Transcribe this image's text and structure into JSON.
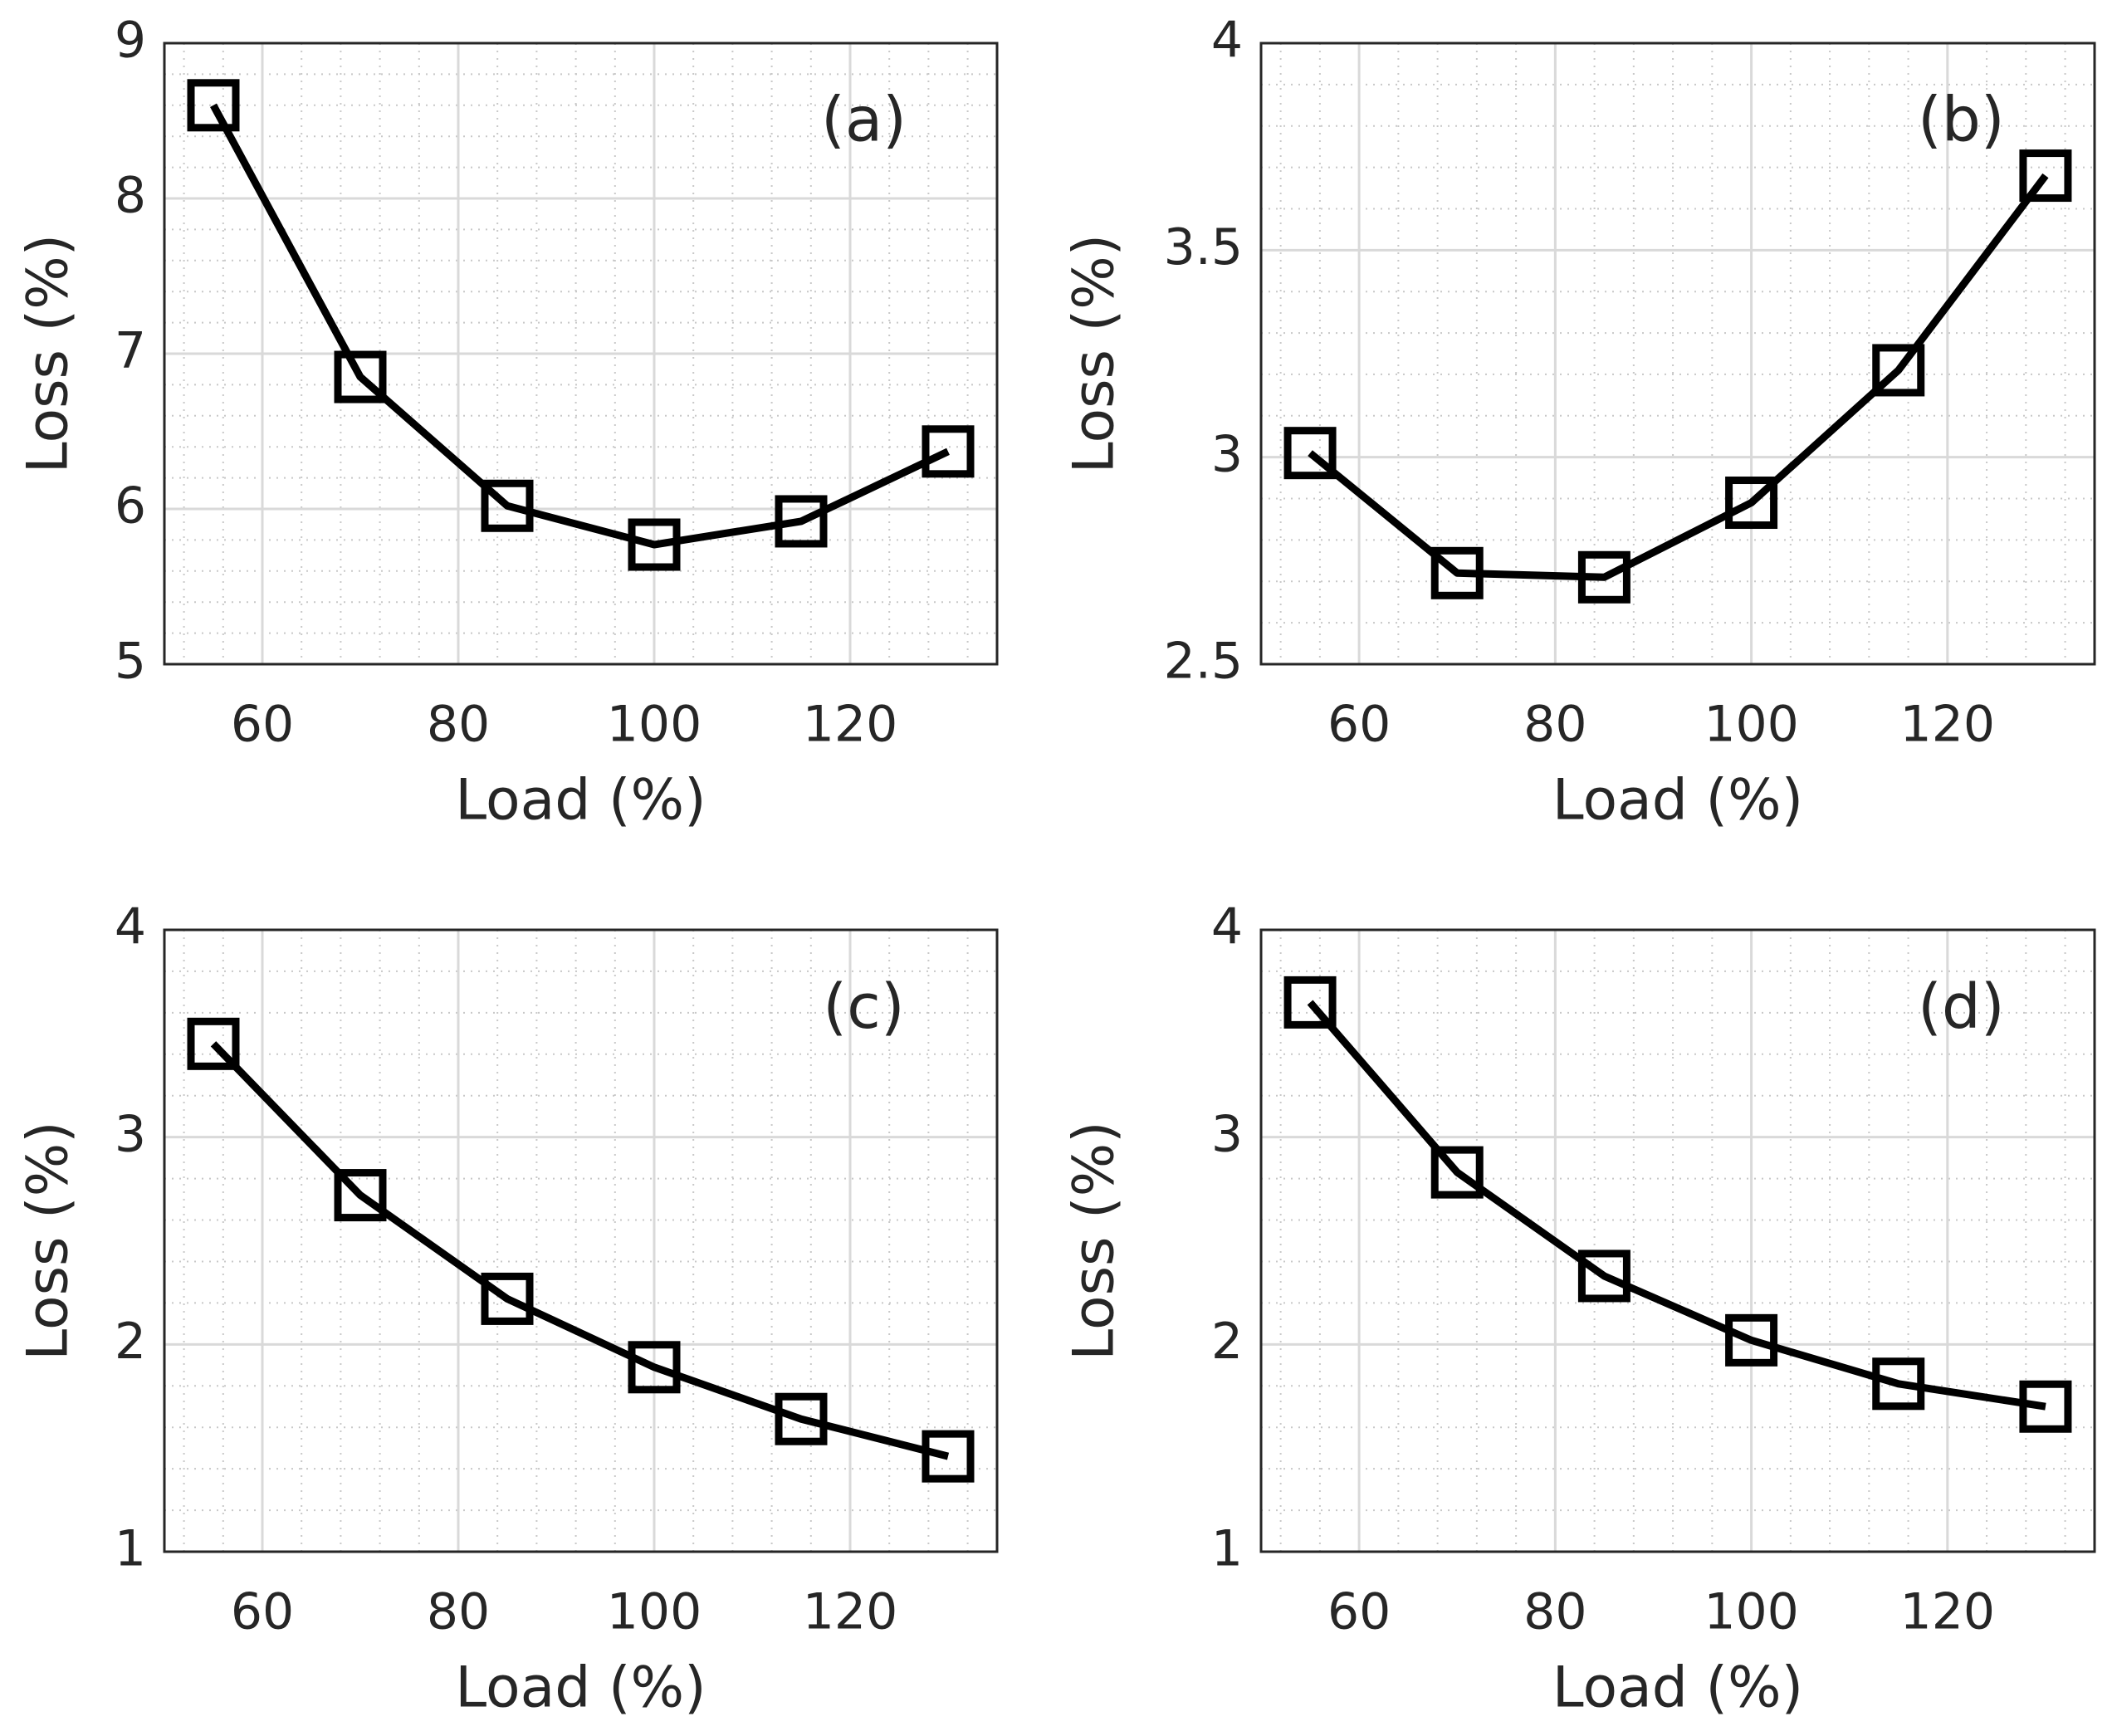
{
  "chart_data": [
    {
      "type": "line",
      "annotation": "(a)",
      "xlabel": "Load (%)",
      "ylabel": "Loss (%)",
      "x": [
        55,
        70,
        85,
        100,
        115,
        130
      ],
      "series": [
        {
          "color": "#000000",
          "values": [
            8.6,
            6.85,
            6.02,
            5.77,
            5.92,
            6.37
          ]
        }
      ],
      "xlim": [
        50,
        135
      ],
      "xticks": [
        60,
        80,
        100,
        120
      ],
      "ylim": [
        5,
        9
      ],
      "yticks": [
        5,
        6,
        7,
        8,
        9
      ],
      "grid": true,
      "minor_grid": true
    },
    {
      "type": "line",
      "annotation": "(b)",
      "xlabel": "Load (%)",
      "ylabel": "Loss (%)",
      "x": [
        55,
        70,
        85,
        100,
        115,
        130
      ],
      "series": [
        {
          "color": "#000000",
          "values": [
            3.01,
            2.72,
            2.71,
            2.89,
            3.21,
            3.68
          ]
        }
      ],
      "xlim": [
        50,
        135
      ],
      "xticks": [
        60,
        80,
        100,
        120
      ],
      "ylim": [
        2.5,
        4
      ],
      "yticks": [
        2.5,
        3,
        3.5,
        4
      ],
      "grid": true,
      "minor_grid": true
    },
    {
      "type": "line",
      "annotation": "(c)",
      "xlabel": "Load (%)",
      "ylabel": "Loss (%)",
      "x": [
        55,
        70,
        85,
        100,
        115,
        130
      ],
      "series": [
        {
          "color": "#000000",
          "values": [
            3.45,
            2.72,
            2.22,
            1.89,
            1.64,
            1.46
          ]
        }
      ],
      "xlim": [
        50,
        135
      ],
      "xticks": [
        60,
        80,
        100,
        120
      ],
      "ylim": [
        1,
        4
      ],
      "yticks": [
        1,
        2,
        3,
        4
      ],
      "grid": true,
      "minor_grid": true
    },
    {
      "type": "line",
      "annotation": "(d)",
      "xlabel": "Load (%)",
      "ylabel": "Loss (%)",
      "x": [
        55,
        70,
        85,
        100,
        115,
        130
      ],
      "series": [
        {
          "color": "#000000",
          "values": [
            3.65,
            2.83,
            2.33,
            2.02,
            1.81,
            1.7
          ]
        }
      ],
      "xlim": [
        50,
        135
      ],
      "xticks": [
        60,
        80,
        100,
        120
      ],
      "ylim": [
        1,
        4
      ],
      "yticks": [
        1,
        2,
        3,
        4
      ],
      "grid": true,
      "minor_grid": true
    }
  ]
}
